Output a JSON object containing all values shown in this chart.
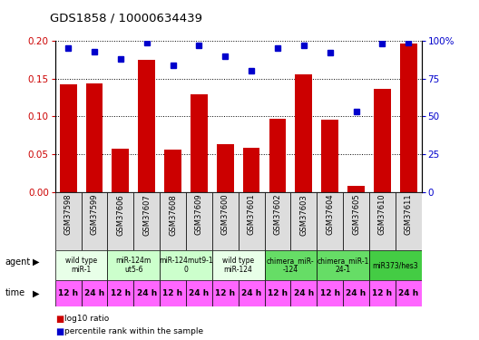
{
  "title": "GDS1858 / 10000634439",
  "samples": [
    "GSM37598",
    "GSM37599",
    "GSM37606",
    "GSM37607",
    "GSM37608",
    "GSM37609",
    "GSM37600",
    "GSM37601",
    "GSM37602",
    "GSM37603",
    "GSM37604",
    "GSM37605",
    "GSM37610",
    "GSM37611"
  ],
  "log10_ratio": [
    0.143,
    0.144,
    0.057,
    0.175,
    0.056,
    0.129,
    0.063,
    0.059,
    0.097,
    0.156,
    0.096,
    0.008,
    0.137,
    0.197
  ],
  "percentile_rank": [
    95,
    93,
    88,
    99,
    84,
    97,
    90,
    80,
    95,
    97,
    92,
    53,
    98,
    99
  ],
  "bar_color": "#cc0000",
  "dot_color": "#0000cc",
  "ylim_left": [
    0,
    0.2
  ],
  "ylim_right": [
    0,
    100
  ],
  "yticks_left": [
    0,
    0.05,
    0.1,
    0.15,
    0.2
  ],
  "yticks_right": [
    0,
    25,
    50,
    75,
    100
  ],
  "agents": [
    {
      "label": "wild type\nmiR-1",
      "start": 0,
      "end": 2,
      "color": "#e8ffe8"
    },
    {
      "label": "miR-124m\nut5-6",
      "start": 2,
      "end": 4,
      "color": "#ccffcc"
    },
    {
      "label": "miR-124mut9-1\n0",
      "start": 4,
      "end": 6,
      "color": "#ccffcc"
    },
    {
      "label": "wild type\nmiR-124",
      "start": 6,
      "end": 8,
      "color": "#e8ffe8"
    },
    {
      "label": "chimera_miR-\n-124",
      "start": 8,
      "end": 10,
      "color": "#66dd66"
    },
    {
      "label": "chimera_miR-1\n24-1",
      "start": 10,
      "end": 12,
      "color": "#66dd66"
    },
    {
      "label": "miR373/hes3",
      "start": 12,
      "end": 14,
      "color": "#44cc44"
    }
  ],
  "times": [
    "12 h",
    "24 h",
    "12 h",
    "24 h",
    "12 h",
    "24 h",
    "12 h",
    "24 h",
    "12 h",
    "24 h",
    "12 h",
    "24 h",
    "12 h",
    "24 h"
  ],
  "time_color": "#ff66ff",
  "sample_bg": "#dddddd",
  "legend_bar_label": "log10 ratio",
  "legend_dot_label": "percentile rank within the sample"
}
